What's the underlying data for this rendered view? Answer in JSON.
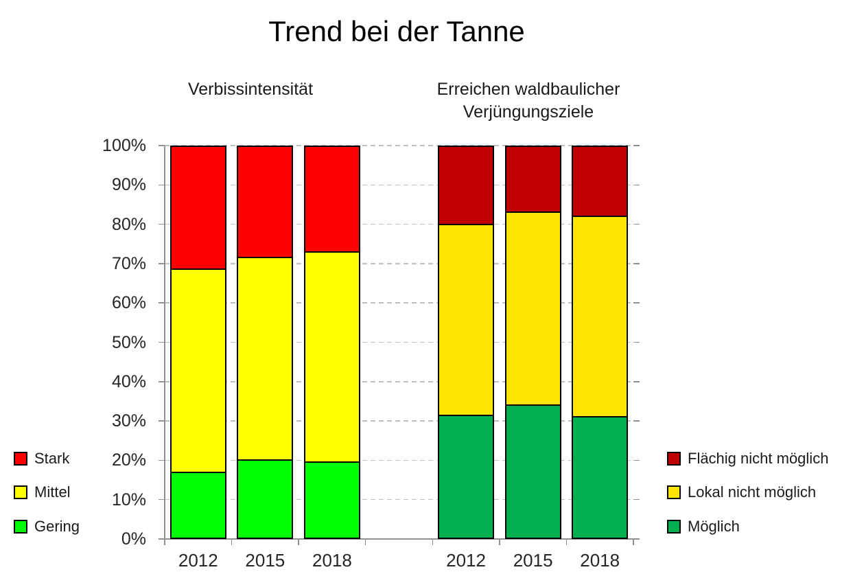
{
  "title": "Trend bei der Tanne",
  "chart_data": {
    "type": "bar",
    "stacked": true,
    "unit": "%",
    "ylim": [
      0,
      100
    ],
    "y_tick_step": 10,
    "y_tick_labels": [
      "0%",
      "10%",
      "20%",
      "30%",
      "40%",
      "50%",
      "60%",
      "70%",
      "80%",
      "90%",
      "100%"
    ],
    "grid": "dashed-horizontal",
    "grid_color": "#BFBFBF",
    "axis_color": "#909090",
    "groups": [
      {
        "title_lines": [
          "Verbissintensität"
        ],
        "categories": [
          "2012",
          "2015",
          "2018"
        ],
        "series": [
          {
            "name": "Gering",
            "color": "#00FF00",
            "values": [
              17,
              20,
              19.5
            ]
          },
          {
            "name": "Mittel",
            "color": "#FFFF00",
            "values": [
              51.5,
              51.5,
              53.5
            ]
          },
          {
            "name": "Stark",
            "color": "#FF0000",
            "values": [
              31.5,
              28.5,
              27
            ]
          }
        ],
        "legend": [
          "Stark",
          "Mittel",
          "Gering"
        ],
        "legend_position": "outside-left"
      },
      {
        "title_lines": [
          "Erreichen waldbaulicher",
          "Verjüngungsziele"
        ],
        "categories": [
          "2012",
          "2015",
          "2018"
        ],
        "series": [
          {
            "name": "Möglich",
            "color": "#00B050",
            "values": [
              31.5,
              34,
              31
            ]
          },
          {
            "name": "Lokal nicht möglich",
            "color": "#FFE600",
            "values": [
              48.5,
              49,
              51
            ]
          },
          {
            "name": "Flächig nicht möglich",
            "color": "#C00000",
            "values": [
              20,
              17,
              18
            ]
          }
        ],
        "legend": [
          "Flächig nicht möglich",
          "Lokal nicht möglich",
          "Möglich"
        ],
        "legend_position": "outside-right"
      }
    ]
  }
}
